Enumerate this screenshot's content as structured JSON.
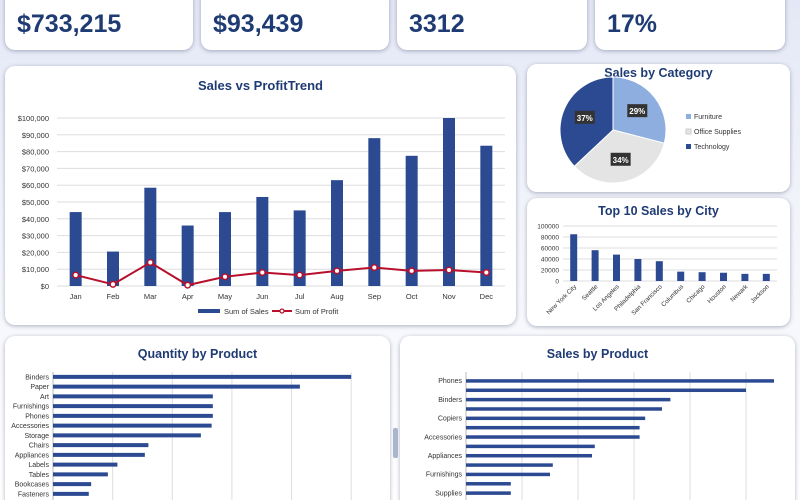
{
  "kpis": [
    {
      "value": "$733,215"
    },
    {
      "value": "$93,439"
    },
    {
      "value": "3312"
    },
    {
      "value": "17%"
    }
  ],
  "colors": {
    "sales_bar": "#2c4a92",
    "profit_line": "#b8102c",
    "pie_furniture": "#8eaee0",
    "pie_office": "#e4e4e4",
    "pie_technology": "#2c4a92",
    "title": "#1f3b73",
    "grid": "#dddddd"
  },
  "chart_data": [
    {
      "type": "bar",
      "title": "Sales vs ProfitTrend",
      "categories": [
        "Jan",
        "Feb",
        "Mar",
        "Apr",
        "May",
        "Jun",
        "Jul",
        "Aug",
        "Sep",
        "Oct",
        "Nov",
        "Dec"
      ],
      "series": [
        {
          "name": "Sum of Sales",
          "type": "bar",
          "values": [
            44000,
            20500,
            58500,
            36000,
            44000,
            53000,
            45000,
            63000,
            88000,
            77500,
            100000,
            83500
          ]
        },
        {
          "name": "Sum of Profit",
          "type": "line",
          "values": [
            6500,
            1000,
            14000,
            500,
            5500,
            8000,
            6500,
            9000,
            11000,
            9000,
            9500,
            8000
          ]
        }
      ],
      "y_ticks": [
        "$0",
        "$10,000",
        "$20,000",
        "$30,000",
        "$40,000",
        "$50,000",
        "$60,000",
        "$70,000",
        "$80,000",
        "$90,000",
        "$100,000"
      ],
      "ylim": [
        0,
        100000
      ],
      "grid": true,
      "legend": "bottom"
    },
    {
      "type": "pie",
      "title": "Sales by Category",
      "categories": [
        "Furniture",
        "Office Supplies",
        "Technology"
      ],
      "values": [
        29,
        34,
        37
      ],
      "labels": [
        "29%",
        "34%",
        "37%"
      ],
      "legend": "right"
    },
    {
      "type": "bar",
      "title": "Top 10 Sales by City",
      "categories": [
        "New York City",
        "Seattle",
        "Los Angeles",
        "Philadelphia",
        "San Francisco",
        "Columbus",
        "Chicago",
        "Houston",
        "Newark",
        "Jackson"
      ],
      "values": [
        85000,
        56000,
        48000,
        40000,
        36000,
        17000,
        16000,
        15000,
        13000,
        13000
      ],
      "y_ticks": [
        "0",
        "20000",
        "40000",
        "60000",
        "80000",
        "100000"
      ],
      "ylim": [
        0,
        100000
      ],
      "grid": true
    },
    {
      "type": "bar",
      "orientation": "horizontal",
      "title": "Quantity by Product",
      "categories": [
        "Binders",
        "Paper",
        "Art",
        "Furnishings",
        "Phones",
        "Accessories",
        "Storage",
        "Chairs",
        "Appliances",
        "Labels",
        "Tables",
        "Bookcases",
        "Fasteners"
      ],
      "values": [
        2500,
        2070,
        1340,
        1340,
        1340,
        1330,
        1240,
        800,
        770,
        540,
        460,
        320,
        300
      ],
      "xlim": [
        0,
        2750
      ],
      "grid": true
    },
    {
      "type": "bar",
      "orientation": "horizontal",
      "title": "Sales by Product",
      "categories": [
        "Phones",
        "Binders",
        "Copiers",
        "Accessories",
        "Appliances",
        "Furnishings",
        "Supplies"
      ],
      "bars": [
        {
          "category": "Phones",
          "value": 110000
        },
        {
          "value": 100000
        },
        {
          "category": "Binders",
          "value": 73000
        },
        {
          "value": 70000
        },
        {
          "category": "Copiers",
          "value": 64000
        },
        {
          "value": 62000
        },
        {
          "category": "Accessories",
          "value": 62000
        },
        {
          "value": 46000
        },
        {
          "category": "Appliances",
          "value": 45000
        },
        {
          "value": 31000
        },
        {
          "category": "Furnishings",
          "value": 30000
        },
        {
          "value": 16000
        },
        {
          "category": "Supplies",
          "value": 16000
        }
      ],
      "xlim": [
        0,
        115000
      ],
      "grid": true
    }
  ]
}
